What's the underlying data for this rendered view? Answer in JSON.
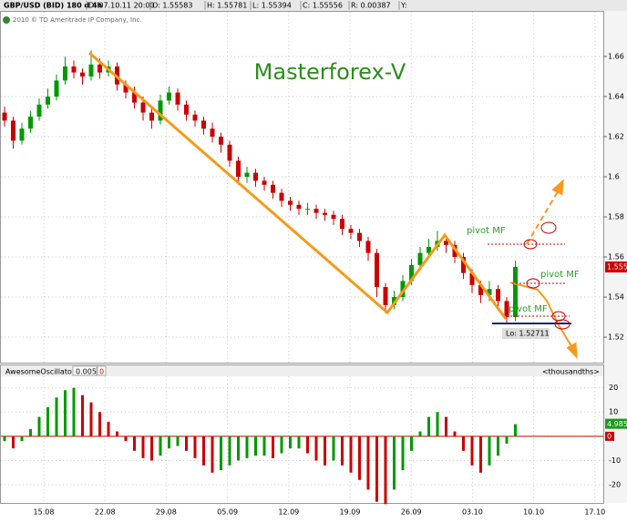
{
  "chart_data": {
    "type": "candlestick",
    "header": [
      "GBP/USD (BID) 180 d 4h",
      "D: 07.10.11 20:00",
      "O: 1.55583",
      "H: 1.55781",
      "L: 1.55394",
      "C: 1.55556",
      "R: 0.00387",
      "Y:"
    ],
    "copyright": "2010 © TD Ameritrade IP Company, Inc.",
    "title": "Masterforex-V",
    "annotations": [
      "pivot MF",
      "pivot MF",
      "pivot MF",
      "Lo: 1.52711"
    ],
    "up_color": "#009900",
    "down_color": "#cc0000",
    "ylim": [
      1.5073,
      1.6827
    ],
    "yticks": [
      1.52,
      1.54,
      1.56,
      1.58,
      1.6,
      1.62,
      1.64,
      1.66
    ],
    "xticks": [
      "15.08",
      "22.08",
      "29.08",
      "05.09",
      "12.09",
      "19.09",
      "26.09",
      "03.10",
      "10.10",
      "17.10"
    ],
    "candles": [
      {
        "o": 1.632,
        "h": 1.635,
        "l": 1.625,
        "c": 1.628
      },
      {
        "o": 1.628,
        "h": 1.63,
        "l": 1.614,
        "c": 1.618
      },
      {
        "o": 1.618,
        "h": 1.627,
        "l": 1.616,
        "c": 1.624
      },
      {
        "o": 1.624,
        "h": 1.633,
        "l": 1.622,
        "c": 1.63
      },
      {
        "o": 1.63,
        "h": 1.639,
        "l": 1.628,
        "c": 1.636
      },
      {
        "o": 1.636,
        "h": 1.644,
        "l": 1.634,
        "c": 1.64
      },
      {
        "o": 1.64,
        "h": 1.651,
        "l": 1.638,
        "c": 1.648
      },
      {
        "o": 1.648,
        "h": 1.66,
        "l": 1.646,
        "c": 1.655
      },
      {
        "o": 1.655,
        "h": 1.658,
        "l": 1.649,
        "c": 1.652
      },
      {
        "o": 1.652,
        "h": 1.654,
        "l": 1.646,
        "c": 1.65
      },
      {
        "o": 1.65,
        "h": 1.663,
        "l": 1.648,
        "c": 1.656
      },
      {
        "o": 1.656,
        "h": 1.659,
        "l": 1.649,
        "c": 1.652
      },
      {
        "o": 1.652,
        "h": 1.658,
        "l": 1.65,
        "c": 1.655
      },
      {
        "o": 1.655,
        "h": 1.657,
        "l": 1.643,
        "c": 1.646
      },
      {
        "o": 1.646,
        "h": 1.648,
        "l": 1.639,
        "c": 1.642
      },
      {
        "o": 1.642,
        "h": 1.645,
        "l": 1.634,
        "c": 1.637
      },
      {
        "o": 1.637,
        "h": 1.64,
        "l": 1.628,
        "c": 1.632
      },
      {
        "o": 1.632,
        "h": 1.634,
        "l": 1.624,
        "c": 1.628
      },
      {
        "o": 1.628,
        "h": 1.641,
        "l": 1.626,
        "c": 1.638
      },
      {
        "o": 1.638,
        "h": 1.645,
        "l": 1.636,
        "c": 1.642
      },
      {
        "o": 1.642,
        "h": 1.644,
        "l": 1.633,
        "c": 1.636
      },
      {
        "o": 1.636,
        "h": 1.638,
        "l": 1.628,
        "c": 1.631
      },
      {
        "o": 1.631,
        "h": 1.633,
        "l": 1.625,
        "c": 1.628
      },
      {
        "o": 1.628,
        "h": 1.63,
        "l": 1.621,
        "c": 1.624
      },
      {
        "o": 1.624,
        "h": 1.627,
        "l": 1.617,
        "c": 1.62
      },
      {
        "o": 1.62,
        "h": 1.622,
        "l": 1.612,
        "c": 1.616
      },
      {
        "o": 1.616,
        "h": 1.618,
        "l": 1.605,
        "c": 1.608
      },
      {
        "o": 1.608,
        "h": 1.61,
        "l": 1.596,
        "c": 1.6
      },
      {
        "o": 1.6,
        "h": 1.605,
        "l": 1.597,
        "c": 1.602
      },
      {
        "o": 1.602,
        "h": 1.604,
        "l": 1.595,
        "c": 1.598
      },
      {
        "o": 1.598,
        "h": 1.6,
        "l": 1.593,
        "c": 1.596
      },
      {
        "o": 1.596,
        "h": 1.598,
        "l": 1.589,
        "c": 1.592
      },
      {
        "o": 1.592,
        "h": 1.594,
        "l": 1.585,
        "c": 1.588
      },
      {
        "o": 1.588,
        "h": 1.59,
        "l": 1.583,
        "c": 1.586
      },
      {
        "o": 1.586,
        "h": 1.588,
        "l": 1.581,
        "c": 1.584
      },
      {
        "o": 1.584,
        "h": 1.587,
        "l": 1.581,
        "c": 1.584
      },
      {
        "o": 1.584,
        "h": 1.586,
        "l": 1.579,
        "c": 1.582
      },
      {
        "o": 1.582,
        "h": 1.584,
        "l": 1.578,
        "c": 1.581
      },
      {
        "o": 1.581,
        "h": 1.583,
        "l": 1.576,
        "c": 1.579
      },
      {
        "o": 1.579,
        "h": 1.581,
        "l": 1.571,
        "c": 1.574
      },
      {
        "o": 1.574,
        "h": 1.576,
        "l": 1.569,
        "c": 1.572
      },
      {
        "o": 1.572,
        "h": 1.574,
        "l": 1.565,
        "c": 1.568
      },
      {
        "o": 1.568,
        "h": 1.57,
        "l": 1.558,
        "c": 1.562
      },
      {
        "o": 1.562,
        "h": 1.564,
        "l": 1.54,
        "c": 1.545
      },
      {
        "o": 1.545,
        "h": 1.547,
        "l": 1.532,
        "c": 1.536
      },
      {
        "o": 1.536,
        "h": 1.543,
        "l": 1.534,
        "c": 1.54
      },
      {
        "o": 1.54,
        "h": 1.551,
        "l": 1.538,
        "c": 1.548
      },
      {
        "o": 1.548,
        "h": 1.559,
        "l": 1.546,
        "c": 1.556
      },
      {
        "o": 1.556,
        "h": 1.565,
        "l": 1.554,
        "c": 1.562
      },
      {
        "o": 1.562,
        "h": 1.569,
        "l": 1.56,
        "c": 1.565
      },
      {
        "o": 1.565,
        "h": 1.573,
        "l": 1.563,
        "c": 1.568
      },
      {
        "o": 1.568,
        "h": 1.57,
        "l": 1.562,
        "c": 1.566
      },
      {
        "o": 1.566,
        "h": 1.568,
        "l": 1.557,
        "c": 1.56
      },
      {
        "o": 1.56,
        "h": 1.562,
        "l": 1.549,
        "c": 1.552
      },
      {
        "o": 1.552,
        "h": 1.554,
        "l": 1.542,
        "c": 1.546
      },
      {
        "o": 1.546,
        "h": 1.548,
        "l": 1.537,
        "c": 1.541
      },
      {
        "o": 1.541,
        "h": 1.548,
        "l": 1.538,
        "c": 1.544
      },
      {
        "o": 1.544,
        "h": 1.546,
        "l": 1.535,
        "c": 1.538
      },
      {
        "o": 1.538,
        "h": 1.54,
        "l": 1.527,
        "c": 1.53
      },
      {
        "o": 1.53,
        "h": 1.558,
        "l": 1.528,
        "c": 1.555
      }
    ],
    "oscillator": {
      "name": "AwesomeOscillator",
      "params": [
        "0.005",
        "0"
      ],
      "unit": "<thousandths>",
      "ylim": [
        -27.5,
        24
      ],
      "yticks": [
        -20,
        -10,
        0,
        10,
        20
      ],
      "zero_label": "0",
      "values": [
        -2,
        -5,
        -2,
        3,
        8,
        12,
        16,
        19,
        20,
        17,
        14,
        10,
        6,
        2,
        -2,
        -6,
        -9,
        -10,
        -8,
        -5,
        -4,
        -6,
        -9,
        -12,
        -15,
        -14,
        -12,
        -10,
        -9,
        -8,
        -8,
        -9,
        -7,
        -5,
        -5,
        -7,
        -10,
        -12,
        -10,
        -12,
        -15,
        -18,
        -22,
        -27,
        -28,
        -22,
        -14,
        -6,
        2,
        8,
        10,
        8,
        2,
        -6,
        -12,
        -15,
        -12,
        -8,
        -3,
        4.985
      ]
    }
  }
}
